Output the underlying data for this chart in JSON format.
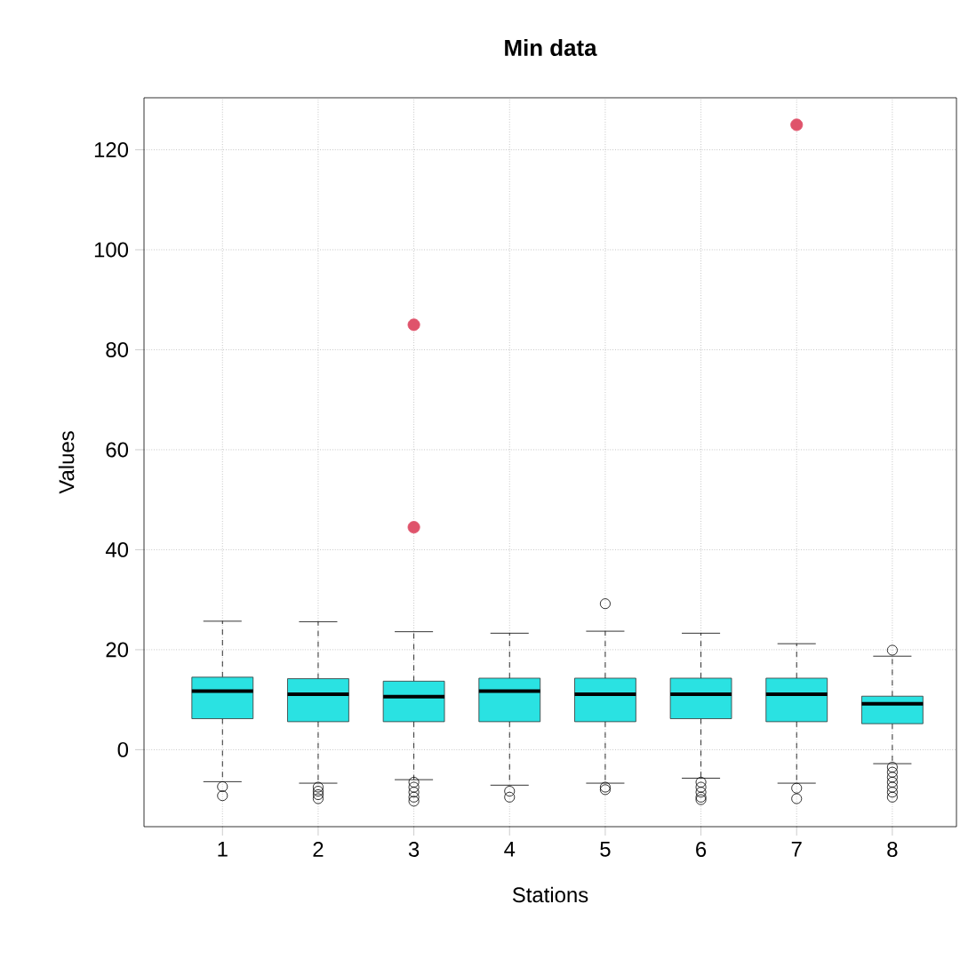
{
  "chart_data": {
    "type": "box",
    "title": "Min data",
    "xlabel": "Stations",
    "ylabel": "Values",
    "categories": [
      "1",
      "2",
      "3",
      "4",
      "5",
      "6",
      "7",
      "8"
    ],
    "ylim": [
      -15.4,
      130.4
    ],
    "yticks": [
      0,
      20,
      40,
      60,
      80,
      100,
      120
    ],
    "grid": true,
    "series": [
      {
        "color": "#2ae2e2",
        "boxes": [
          {
            "low": -6.4,
            "q1": 6.2,
            "median": 11.7,
            "q3": 14.5,
            "high": 25.7,
            "outliers": [
              -7.4,
              -9.2
            ]
          },
          {
            "low": -6.7,
            "q1": 5.6,
            "median": 11.1,
            "q3": 14.2,
            "high": 25.6,
            "outliers": [
              -7.5,
              -8.3,
              -9,
              -9.8
            ]
          },
          {
            "low": -6.0,
            "q1": 5.6,
            "median": 10.6,
            "q3": 13.7,
            "high": 23.6,
            "outliers": [
              -6.5,
              -7.5,
              -8.5,
              -9.5,
              -10.3
            ]
          },
          {
            "low": -7.1,
            "q1": 5.6,
            "median": 11.7,
            "q3": 14.3,
            "high": 23.3,
            "outliers": [
              -8.3,
              -9.5
            ]
          },
          {
            "low": -6.7,
            "q1": 5.6,
            "median": 11.1,
            "q3": 14.3,
            "high": 23.7,
            "outliers": [
              29.2,
              -7.5,
              -8
            ]
          },
          {
            "low": -5.7,
            "q1": 6.2,
            "median": 11.1,
            "q3": 14.3,
            "high": 23.3,
            "outliers": [
              -6.5,
              -7.5,
              -8.5,
              -9.5,
              -10
            ]
          },
          {
            "low": -6.7,
            "q1": 5.6,
            "median": 11.1,
            "q3": 14.3,
            "high": 21.2,
            "outliers": [
              -7.7,
              -9.8
            ]
          },
          {
            "low": -2.8,
            "q1": 5.2,
            "median": 9.2,
            "q3": 10.7,
            "high": 18.7,
            "outliers": [
              19.9,
              -3.5,
              -4.5,
              -5.5,
              -6.5,
              -7.5,
              -8.5,
              -9.5
            ]
          }
        ]
      },
      {
        "type": "scatter",
        "color": "#df536b",
        "marker": "circle",
        "x": [
          "3",
          "3",
          "7"
        ],
        "values": [
          85,
          44.5,
          125
        ]
      }
    ]
  }
}
